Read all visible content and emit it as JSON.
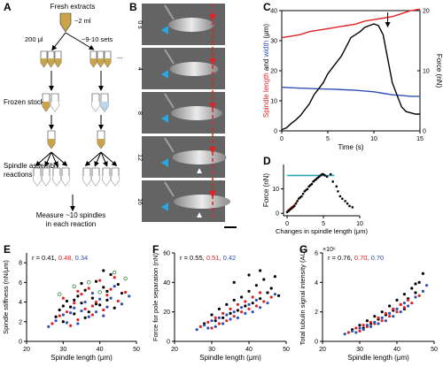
{
  "panels": {
    "A": {
      "label": "A",
      "fresh": "Fresh extracts",
      "vol1": "~2 ml",
      "vol2": "200 μl",
      "sets": "~9-10 sets",
      "frozen": "Frozen stocks",
      "dots": "...",
      "assembly1": "Spindle assembly",
      "assembly2": "reactions",
      "measure1": "Measure ~10 spindles",
      "measure2": "in each reaction"
    },
    "B": {
      "label": "B",
      "times": [
        "0 s",
        "4",
        "8",
        "12",
        "16"
      ]
    },
    "C": {
      "label": "C"
    },
    "D": {
      "label": "D"
    },
    "E": {
      "label": "E",
      "r_prefix": "r = 0.41,",
      "r_red": "0.48,",
      "r_blue": "0.34"
    },
    "F": {
      "label": "F",
      "r_prefix": "r = 0.55,",
      "r_red": "0.51,",
      "r_blue": "0.42"
    },
    "G": {
      "label": "G",
      "r_prefix": "r = 0.76,",
      "r_red": "0.70,",
      "r_blue": "0.70",
      "y_exp": "×10⁶"
    }
  },
  "colors": {
    "red": "#e32222",
    "blue": "#2f50b4",
    "cyan": "#2aa7b6",
    "black": "#000000",
    "green": "#2e8b3a"
  },
  "chart_data": [
    {
      "id": "C",
      "type": "line",
      "xlabel": "Time (s)",
      "ylabel_left_parts": [
        "Spindle length",
        " and ",
        "width",
        " (μm)"
      ],
      "ylabel_right": "Force (nN)",
      "xlim": [
        0,
        15
      ],
      "xticks": [
        "0",
        "5",
        "10",
        "15"
      ],
      "ylim_left": [
        0,
        40
      ],
      "yticks_left": [
        "0",
        "10",
        "20",
        "30",
        "40"
      ],
      "ylim_right": [
        0,
        20
      ],
      "yticks_right": [
        "0",
        "10",
        "20"
      ],
      "series": [
        {
          "axis": "left",
          "color": "red",
          "x": [
            0,
            1,
            2,
            3,
            4,
            5,
            6,
            7,
            8,
            9,
            10,
            11,
            12,
            13,
            14,
            15
          ],
          "y": [
            31,
            31.5,
            32,
            33,
            33.5,
            34,
            34.5,
            35,
            35.5,
            36.5,
            37,
            37.5,
            38,
            39,
            40,
            40.5
          ]
        },
        {
          "axis": "left",
          "color": "blue",
          "x": [
            0,
            2,
            4,
            6,
            8,
            10,
            11,
            12,
            13,
            14,
            15
          ],
          "y": [
            14.5,
            14.2,
            14,
            13.8,
            13.5,
            13,
            12.5,
            12,
            11.8,
            11.5,
            11.5
          ]
        },
        {
          "axis": "right",
          "color": "black",
          "x": [
            0,
            0.5,
            1,
            1.5,
            2,
            2.5,
            3,
            3.5,
            4,
            4.5,
            5,
            5.5,
            6,
            6.5,
            7,
            7.5,
            8,
            8.5,
            9,
            9.5,
            10,
            10.5,
            11,
            11.5,
            12,
            12.5,
            13,
            13.5,
            14,
            14.5,
            15
          ],
          "y": [
            0.2,
            0.5,
            1.2,
            1.8,
            2.5,
            3.5,
            4.5,
            6,
            7,
            8,
            9.5,
            10.5,
            11.5,
            12.5,
            14,
            15.5,
            16,
            16.5,
            17.2,
            17.5,
            17.8,
            17.5,
            16,
            12,
            8,
            6,
            4,
            3.2,
            3,
            2.8,
            2.8
          ]
        }
      ],
      "annotation": "arrow at t≈11.5 s"
    },
    {
      "id": "D",
      "type": "scatter",
      "xlabel": "Changes in spindle length (μm)",
      "ylabel": "Force (nN)",
      "xlim": [
        -0.5,
        10
      ],
      "xticks": [
        "0",
        "5",
        "10"
      ],
      "ylim": [
        -1,
        20
      ],
      "yticks": [
        "0",
        "10"
      ],
      "series": [
        {
          "color": "cyan",
          "kind": "line",
          "x": [
            0,
            6.5
          ],
          "y": [
            15.5,
            15.5
          ]
        },
        {
          "color": "red",
          "kind": "line",
          "x": [
            0,
            0.6,
            1.2,
            1.5
          ],
          "y": [
            1,
            2.5,
            4,
            5.5
          ]
        },
        {
          "color": "black",
          "kind": "points",
          "x": [
            0,
            0.2,
            0.4,
            0.6,
            0.8,
            1,
            1.2,
            1.4,
            1.6,
            1.8,
            2,
            2.2,
            2.4,
            2.6,
            2.8,
            3,
            3.2,
            3.4,
            3.6,
            3.8,
            4,
            4.2,
            4.4,
            4.6,
            4.8,
            5,
            5.2,
            5.5,
            6,
            6.3,
            6.8,
            7,
            7.3,
            7.6,
            8,
            8.3,
            8.6,
            9
          ],
          "y": [
            0.5,
            1,
            1.5,
            2,
            2.5,
            3,
            4,
            5,
            6,
            6.5,
            7,
            8,
            9,
            9.5,
            10,
            11,
            11.5,
            12,
            13,
            13.5,
            14,
            14.5,
            15,
            15.5,
            16,
            16,
            15.5,
            15,
            16,
            13,
            11,
            9,
            7,
            6,
            5,
            4,
            3,
            2.5
          ]
        }
      ]
    },
    {
      "id": "E",
      "type": "scatter",
      "xlabel": "Spindle length (μm)",
      "ylabel": "Spindle stiffness (nN/μm)",
      "xlim": [
        20,
        50
      ],
      "xticks": [
        "20",
        "30",
        "40",
        "50"
      ],
      "ylim": [
        0,
        9
      ],
      "yticks": [
        "0",
        "2",
        "4",
        "6",
        "8"
      ],
      "points": {
        "black": [
          [
            28,
            2.5
          ],
          [
            29,
            3.2
          ],
          [
            30,
            2.0
          ],
          [
            31,
            4.1
          ],
          [
            32,
            3.5
          ],
          [
            33,
            2.8
          ],
          [
            34,
            4.6
          ],
          [
            35,
            3.9
          ],
          [
            36,
            5.2
          ],
          [
            37,
            3.0
          ],
          [
            38,
            4.4
          ],
          [
            39,
            6.1
          ],
          [
            40,
            3.7
          ],
          [
            41,
            5.5
          ],
          [
            42,
            4.2
          ],
          [
            43,
            6.8
          ],
          [
            44,
            3.4
          ],
          [
            45,
            5.8
          ],
          [
            46,
            4.9
          ],
          [
            30,
            3.6
          ],
          [
            33,
            4.2
          ],
          [
            36,
            2.4
          ],
          [
            39,
            3.8
          ],
          [
            42,
            5.1
          ],
          [
            35,
            5.9
          ],
          [
            41,
            7.2
          ]
        ],
        "red": [
          [
            27,
            1.8
          ],
          [
            29,
            2.6
          ],
          [
            31,
            3.0
          ],
          [
            32,
            1.6
          ],
          [
            33,
            3.9
          ],
          [
            34,
            2.2
          ],
          [
            35,
            4.8
          ],
          [
            36,
            3.3
          ],
          [
            37,
            5.4
          ],
          [
            38,
            2.7
          ],
          [
            39,
            4.0
          ],
          [
            40,
            6.2
          ],
          [
            41,
            3.2
          ],
          [
            42,
            4.7
          ],
          [
            43,
            5.3
          ],
          [
            44,
            6.5
          ],
          [
            45,
            4.1
          ],
          [
            30,
            4.4
          ],
          [
            34,
            5.1
          ],
          [
            38,
            3.6
          ],
          [
            47,
            5.0
          ]
        ],
        "blue": [
          [
            26,
            1.5
          ],
          [
            28,
            2.1
          ],
          [
            30,
            2.7
          ],
          [
            31,
            1.9
          ],
          [
            32,
            2.9
          ],
          [
            33,
            3.4
          ],
          [
            34,
            1.8
          ],
          [
            35,
            3.1
          ],
          [
            36,
            4.0
          ],
          [
            37,
            2.5
          ],
          [
            38,
            4.9
          ],
          [
            39,
            3.0
          ],
          [
            40,
            4.3
          ],
          [
            41,
            2.6
          ],
          [
            42,
            3.5
          ],
          [
            43,
            4.4
          ],
          [
            44,
            5.6
          ],
          [
            46,
            3.8
          ],
          [
            48,
            4.6
          ]
        ],
        "green": [
          [
            29,
            4.8
          ],
          [
            33,
            5.6
          ],
          [
            37,
            6.0
          ],
          [
            40,
            5.0
          ],
          [
            44,
            7.0
          ],
          [
            47,
            6.4
          ]
        ]
      }
    },
    {
      "id": "F",
      "type": "scatter",
      "xlabel": "Spindle length (μm)",
      "ylabel": "Force for pole separation (nN)",
      "xlim": [
        20,
        50
      ],
      "xticks": [
        "20",
        "30",
        "40",
        "50"
      ],
      "ylim": [
        0,
        60
      ],
      "yticks": [
        "0",
        "20",
        "40",
        "60"
      ],
      "points": {
        "black": [
          [
            28,
            12
          ],
          [
            30,
            18
          ],
          [
            31,
            14
          ],
          [
            32,
            22
          ],
          [
            33,
            16
          ],
          [
            34,
            25
          ],
          [
            35,
            19
          ],
          [
            36,
            28
          ],
          [
            37,
            21
          ],
          [
            38,
            30
          ],
          [
            39,
            24
          ],
          [
            40,
            34
          ],
          [
            41,
            26
          ],
          [
            42,
            38
          ],
          [
            43,
            29
          ],
          [
            44,
            42
          ],
          [
            45,
            33
          ],
          [
            46,
            36
          ],
          [
            47,
            44
          ],
          [
            48,
            31
          ],
          [
            36,
            40
          ],
          [
            40,
            45
          ],
          [
            43,
            48
          ]
        ],
        "red": [
          [
            27,
            10
          ],
          [
            29,
            13
          ],
          [
            30,
            9
          ],
          [
            31,
            16
          ],
          [
            32,
            12
          ],
          [
            33,
            19
          ],
          [
            34,
            14
          ],
          [
            35,
            22
          ],
          [
            36,
            17
          ],
          [
            37,
            25
          ],
          [
            38,
            20
          ],
          [
            39,
            27
          ],
          [
            40,
            22
          ],
          [
            41,
            30
          ],
          [
            42,
            24
          ],
          [
            43,
            33
          ],
          [
            44,
            27
          ],
          [
            46,
            30
          ]
        ],
        "blue": [
          [
            26,
            8
          ],
          [
            28,
            11
          ],
          [
            29,
            9
          ],
          [
            30,
            14
          ],
          [
            31,
            10
          ],
          [
            32,
            16
          ],
          [
            33,
            12
          ],
          [
            34,
            18
          ],
          [
            35,
            15
          ],
          [
            36,
            20
          ],
          [
            37,
            16
          ],
          [
            38,
            23
          ],
          [
            39,
            19
          ],
          [
            40,
            25
          ],
          [
            41,
            20
          ],
          [
            42,
            28
          ],
          [
            43,
            23
          ],
          [
            45,
            26
          ],
          [
            47,
            32
          ]
        ]
      }
    },
    {
      "id": "G",
      "type": "scatter",
      "xlabel": "Spindle length (μm)",
      "ylabel": "Total tubulin signal intensity (AU)",
      "xlim": [
        20,
        50
      ],
      "xticks": [
        "20",
        "30",
        "40",
        "50"
      ],
      "ylim": [
        0,
        6
      ],
      "yticks": [
        "0",
        "2",
        "4",
        "6"
      ],
      "points": {
        "black": [
          [
            28,
            0.8
          ],
          [
            30,
            1.1
          ],
          [
            31,
            0.9
          ],
          [
            32,
            1.4
          ],
          [
            33,
            1.2
          ],
          [
            34,
            1.7
          ],
          [
            35,
            1.5
          ],
          [
            36,
            2.0
          ],
          [
            37,
            1.8
          ],
          [
            38,
            2.4
          ],
          [
            39,
            2.1
          ],
          [
            40,
            2.8
          ],
          [
            41,
            2.5
          ],
          [
            42,
            3.2
          ],
          [
            43,
            2.9
          ],
          [
            44,
            3.6
          ],
          [
            45,
            3.3
          ],
          [
            46,
            4.0
          ],
          [
            47,
            4.6
          ],
          [
            45,
            3.9
          ],
          [
            42,
            2.2
          ]
        ],
        "red": [
          [
            27,
            0.6
          ],
          [
            29,
            0.9
          ],
          [
            30,
            0.7
          ],
          [
            31,
            1.1
          ],
          [
            32,
            1.0
          ],
          [
            33,
            1.3
          ],
          [
            34,
            1.2
          ],
          [
            35,
            1.6
          ],
          [
            36,
            1.4
          ],
          [
            37,
            1.9
          ],
          [
            38,
            1.7
          ],
          [
            39,
            2.2
          ],
          [
            40,
            2.0
          ],
          [
            41,
            2.5
          ],
          [
            42,
            2.3
          ],
          [
            43,
            2.8
          ],
          [
            44,
            2.6
          ],
          [
            46,
            3.1
          ]
        ],
        "blue": [
          [
            26,
            0.5
          ],
          [
            28,
            0.7
          ],
          [
            29,
            0.6
          ],
          [
            30,
            0.9
          ],
          [
            31,
            0.8
          ],
          [
            32,
            1.1
          ],
          [
            33,
            1.0
          ],
          [
            34,
            1.3
          ],
          [
            35,
            1.2
          ],
          [
            36,
            1.6
          ],
          [
            37,
            1.4
          ],
          [
            38,
            1.9
          ],
          [
            39,
            1.7
          ],
          [
            40,
            2.2
          ],
          [
            41,
            2.0
          ],
          [
            42,
            2.6
          ],
          [
            43,
            2.4
          ],
          [
            45,
            3.0
          ],
          [
            47,
            3.4
          ],
          [
            48,
            3.8
          ]
        ]
      }
    }
  ]
}
